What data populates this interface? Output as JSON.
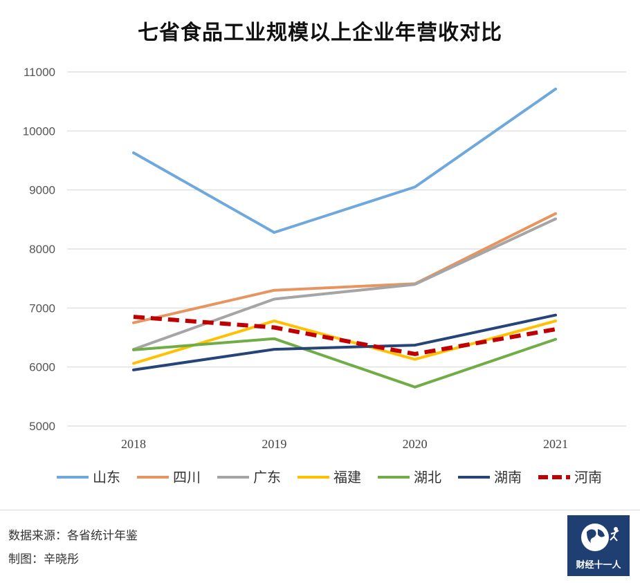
{
  "title": "七省食品工业规模以上企业年营收对比",
  "chart_data": {
    "type": "line",
    "title": "七省食品工业规模以上企业年营收对比",
    "xlabel": "",
    "ylabel": "",
    "categories": [
      "2018",
      "2019",
      "2020",
      "2021"
    ],
    "ylim": [
      5000,
      11000
    ],
    "yticks": [
      5000,
      6000,
      7000,
      8000,
      9000,
      10000,
      11000
    ],
    "grid": true,
    "legend_position": "bottom",
    "series": [
      {
        "name": "山东",
        "color": "#6fa8dc",
        "dashed": false,
        "values": [
          9630,
          8280,
          9050,
          10710
        ]
      },
      {
        "name": "四川",
        "color": "#e69560",
        "dashed": false,
        "values": [
          6750,
          7300,
          7410,
          8600
        ]
      },
      {
        "name": "广东",
        "color": "#a5a5a5",
        "dashed": false,
        "values": [
          6300,
          7150,
          7400,
          8510
        ]
      },
      {
        "name": "福建",
        "color": "#ffc000",
        "dashed": false,
        "values": [
          6060,
          6780,
          6130,
          6780
        ]
      },
      {
        "name": "湖北",
        "color": "#70ad47",
        "dashed": false,
        "values": [
          6290,
          6480,
          5660,
          6470
        ]
      },
      {
        "name": "湖南",
        "color": "#264478",
        "dashed": false,
        "values": [
          5950,
          6300,
          6370,
          6880
        ]
      },
      {
        "name": "河南",
        "color": "#c00000",
        "dashed": true,
        "values": [
          6850,
          6670,
          6220,
          6640
        ]
      }
    ]
  },
  "footer": {
    "source": "数据来源：各省统计年鉴",
    "maker": "制图：辛晓彤"
  },
  "logo": {
    "text": "财经十一人",
    "icon": "globe-runner-icon",
    "color": "#1f3f73"
  }
}
